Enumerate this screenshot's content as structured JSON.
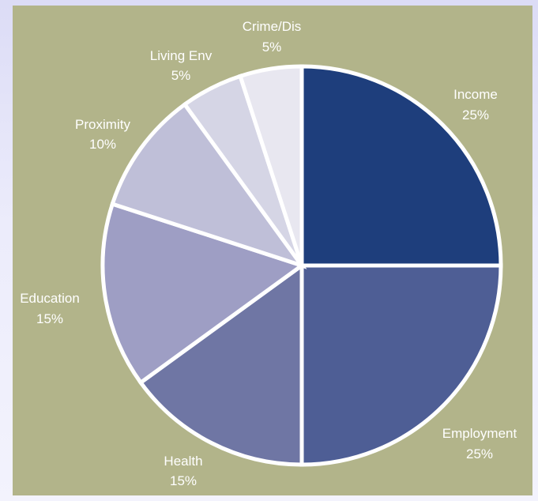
{
  "chart_data": {
    "type": "pie",
    "title": "",
    "start_angle_deg": 0,
    "direction": "clockwise",
    "slices": [
      {
        "label": "Income",
        "percent_label": "25%",
        "value": 25,
        "color": "#1e3e7c"
      },
      {
        "label": "Employment",
        "percent_label": "25%",
        "value": 25,
        "color": "#4e5e95"
      },
      {
        "label": "Health",
        "percent_label": "15%",
        "value": 15,
        "color": "#6f76a4"
      },
      {
        "label": "Education",
        "percent_label": "15%",
        "value": 15,
        "color": "#9e9ec4"
      },
      {
        "label": "Proximity",
        "percent_label": "10%",
        "value": 10,
        "color": "#bfbfd8"
      },
      {
        "label": "Living Env",
        "percent_label": "5%",
        "value": 5,
        "color": "#d5d5e5"
      },
      {
        "label": "Crime/Dis",
        "percent_label": "5%",
        "value": 5,
        "color": "#e8e7f0"
      }
    ]
  },
  "colors": {
    "panel_background": "#b2b48a",
    "page_background": "#e4e4f8",
    "slice_border": "#ffffff",
    "label_text": "#ffffff"
  }
}
